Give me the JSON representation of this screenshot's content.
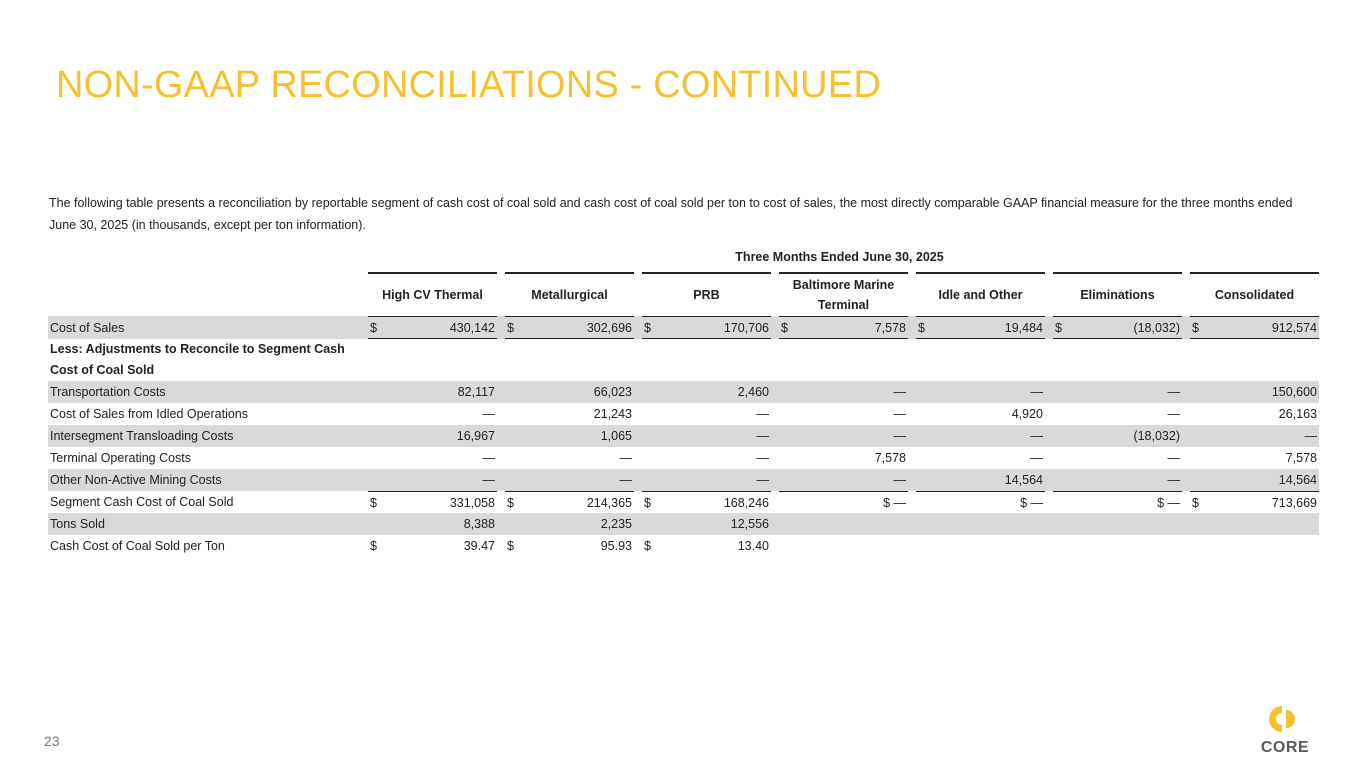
{
  "title": "NON-GAAP RECONCILIATIONS - CONTINUED",
  "intro": "The following table presents a reconciliation by reportable segment of cash cost of coal sold and cash cost of coal sold per ton to cost of sales, the most directly comparable GAAP financial measure for the three months ended June 30, 2025 (in thousands, except per ton information).",
  "table": {
    "period": "Three Months Ended June 30, 2025",
    "columns": [
      "High CV Thermal",
      "Metallurgical",
      "PRB",
      "Baltimore Marine Terminal",
      "Idle and Other",
      "Eliminations",
      "Consolidated"
    ],
    "rows": [
      {
        "label": "Cost of Sales",
        "shaded": true,
        "dollar": [
          true,
          true,
          true,
          true,
          true,
          true,
          true
        ],
        "values": [
          "430,142",
          "302,696",
          "170,706",
          "7,578",
          "19,484",
          "(18,032)",
          "912,574"
        ]
      },
      {
        "label": "Less:  Adjustments to Reconcile to Segment Cash Cost of Coal Sold",
        "bold": true,
        "values": []
      },
      {
        "label": "Transportation Costs",
        "shaded": true,
        "values": [
          "82,117",
          "66,023",
          "2,460",
          "—",
          "—",
          "—",
          "150,600"
        ]
      },
      {
        "label": "Cost of Sales from Idled Operations",
        "values": [
          "—",
          "21,243",
          "—",
          "—",
          "4,920",
          "—",
          "26,163"
        ]
      },
      {
        "label": "Intersegment Transloading Costs",
        "shaded": true,
        "values": [
          "16,967",
          "1,065",
          "—",
          "—",
          "—",
          "(18,032)",
          "—"
        ]
      },
      {
        "label": "Terminal Operating Costs",
        "values": [
          "—",
          "—",
          "—",
          "7,578",
          "—",
          "—",
          "7,578"
        ]
      },
      {
        "label": "Other Non-Active Mining Costs",
        "shaded": true,
        "values": [
          "—",
          "—",
          "—",
          "—",
          "14,564",
          "—",
          "14,564"
        ]
      },
      {
        "label": "Segment Cash Cost of Coal Sold",
        "dollar": [
          true,
          true,
          true,
          false,
          false,
          false,
          true
        ],
        "values": [
          "331,058",
          "214,365",
          "168,246",
          "$ —",
          "$ —",
          "$ —",
          "713,669"
        ]
      },
      {
        "label": "Tons Sold",
        "shaded": true,
        "values": [
          "8,388",
          "2,235",
          "12,556",
          "",
          "",
          "",
          ""
        ]
      },
      {
        "label": "Cash Cost of Coal Sold per Ton",
        "dollar": [
          true,
          true,
          true,
          false,
          false,
          false,
          false
        ],
        "values": [
          "39.47",
          "95.93",
          "13.40",
          "",
          "",
          "",
          ""
        ]
      }
    ],
    "currency_symbol": "$"
  },
  "page_number": "23",
  "logo": {
    "text": "CORE",
    "color": "#f6c02e"
  },
  "colors": {
    "title": "#f6c02e",
    "row_shade": "#d9d9d9"
  }
}
